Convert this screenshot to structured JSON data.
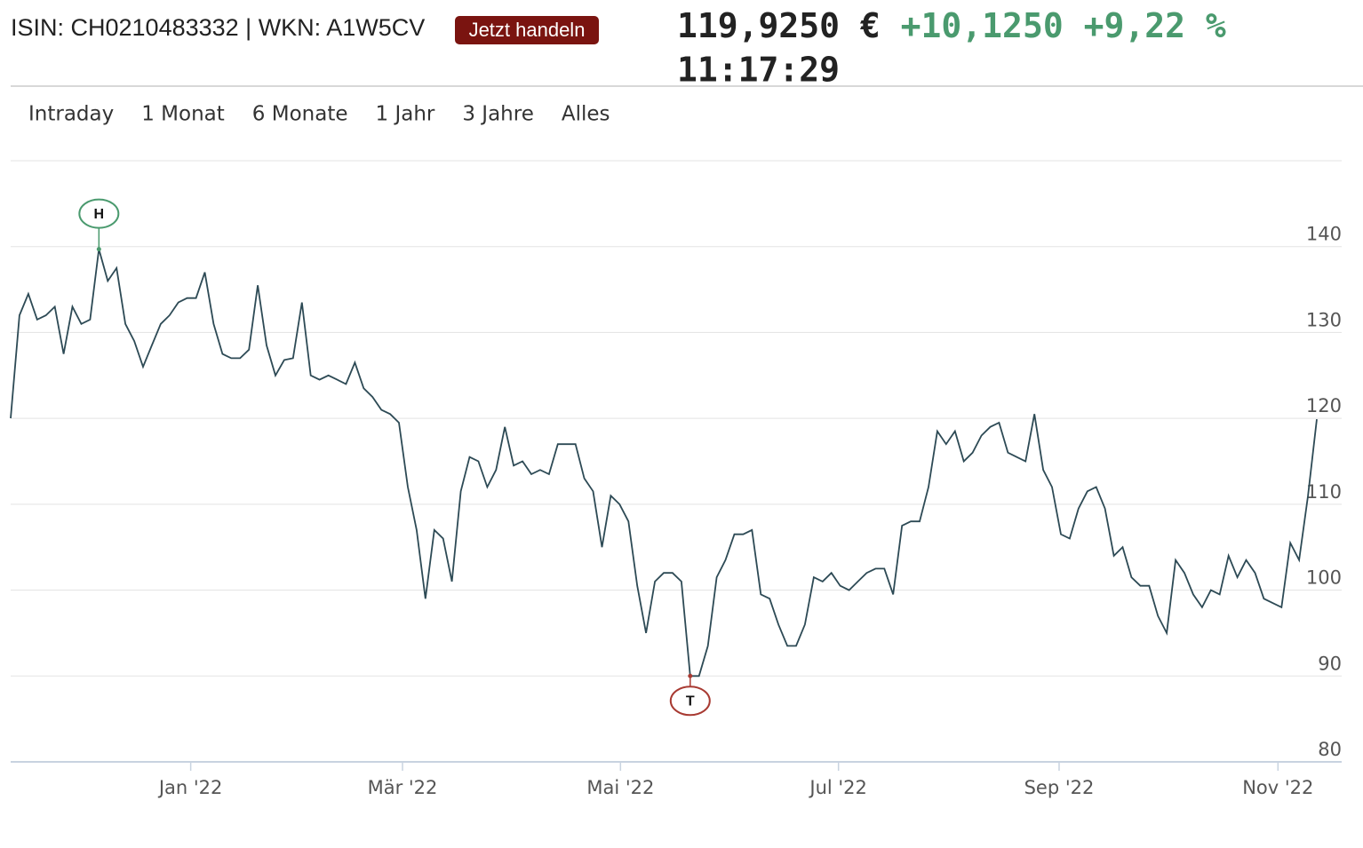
{
  "header": {
    "identifiers": "ISIN: CH0210483332 | WKN: A1W5CV",
    "trade_button": "Jetzt handeln",
    "price": "119,9250 €",
    "change": "+10,1250",
    "change_percent": "+9,22 %",
    "time": "11:17:29"
  },
  "ranges": [
    "Intraday",
    "1 Monat",
    "6 Monate",
    "1 Jahr",
    "3 Jahre",
    "Alles"
  ],
  "chart_data": {
    "type": "line",
    "color": "#2d4a55",
    "grid": true,
    "values": [
      120,
      132,
      134.5,
      131.5,
      132,
      133,
      127.5,
      133,
      131,
      131.5,
      139.7,
      136,
      137.5,
      131,
      129,
      126,
      128.5,
      131,
      132,
      133.5,
      134,
      134,
      137,
      131,
      127.5,
      127,
      127,
      128,
      135.5,
      128.5,
      125,
      126.8,
      127,
      133.5,
      125,
      124.5,
      125,
      124.5,
      124,
      126.5,
      123.5,
      122.5,
      121,
      120.5,
      119.5,
      112,
      107,
      99,
      107,
      106,
      101,
      111.5,
      115.5,
      115,
      112,
      114,
      119,
      114.5,
      115,
      113.5,
      114,
      113.5,
      117,
      117,
      117,
      113,
      111.5,
      105,
      111,
      110,
      108,
      100.5,
      95,
      101,
      102,
      102,
      101,
      90,
      90,
      93.5,
      101.5,
      103.5,
      106.5,
      106.5,
      107,
      99.5,
      99,
      96,
      93.5,
      93.5,
      96,
      101.5,
      101,
      102,
      100.5,
      100,
      101,
      102,
      102.5,
      102.5,
      99.5,
      107.5,
      108,
      108,
      112,
      118.5,
      117,
      118.5,
      115,
      116,
      118,
      119,
      119.5,
      116,
      115.5,
      115,
      120.5,
      114,
      112,
      106.5,
      106,
      109.5,
      111.5,
      112,
      109.5,
      104,
      105,
      101.5,
      100.5,
      100.5,
      97,
      95,
      103.5,
      102,
      99.5,
      98,
      100,
      99.5,
      104,
      101.5,
      103.5,
      102,
      99,
      98.5,
      98,
      105.5,
      103.5,
      111,
      119.9
    ],
    "xlim": [
      0,
      148
    ],
    "xticks": [
      {
        "value": 20.4,
        "label": "Jan '22"
      },
      {
        "value": 44.4,
        "label": "Mär '22"
      },
      {
        "value": 69.1,
        "label": "Mai '22"
      },
      {
        "value": 93.8,
        "label": "Jul '22"
      },
      {
        "value": 118.8,
        "label": "Sep '22"
      },
      {
        "value": 143.6,
        "label": "Nov '22"
      }
    ],
    "ylim": [
      80,
      150
    ],
    "yticks": [
      80,
      90,
      100,
      110,
      120,
      130,
      140
    ],
    "high_label": "H",
    "low_label": "T"
  }
}
